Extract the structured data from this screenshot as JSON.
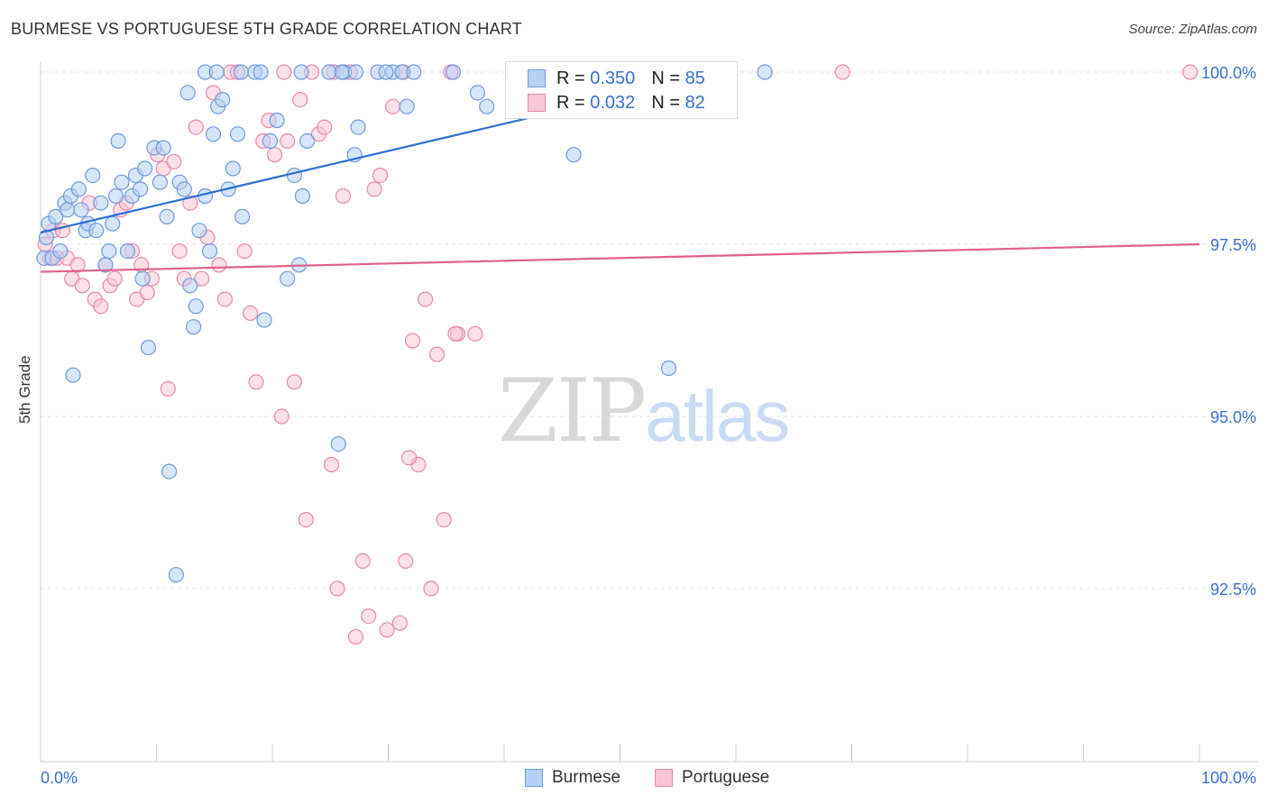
{
  "title": "BURMESE VS PORTUGUESE 5TH GRADE CORRELATION CHART",
  "source": "Source: ZipAtlas.com",
  "watermark": {
    "zip": "ZIP",
    "atlas": "atlas"
  },
  "colors": {
    "burmese_fill": "#b7d0f3",
    "burmese_stroke": "#6f9be0",
    "burmese_line": "#2f6fd0",
    "portuguese_fill": "#f8c6d6",
    "portuguese_stroke": "#e88aa8",
    "portuguese_line": "#e0608a",
    "tick_label": "#3b6fd4",
    "grid": "#e3e3e3"
  },
  "legend": {
    "burmese": {
      "r_label": "R =",
      "r_value": "0.350",
      "n_label": "N =",
      "n_value": "85"
    },
    "portuguese": {
      "r_label": "R =",
      "r_value": "0.032",
      "n_label": "N =",
      "n_value": "82"
    }
  },
  "chart_data": {
    "type": "scatter",
    "title": "BURMESE VS PORTUGUESE 5TH GRADE CORRELATION CHART",
    "xlabel": "",
    "ylabel": "5th Grade",
    "xlim": [
      0,
      100
    ],
    "ylim": [
      90.0,
      100.2
    ],
    "x_tick_labels": [
      "0.0%",
      "100.0%"
    ],
    "y_ticks": [
      92.5,
      95.0,
      97.5,
      100.0
    ],
    "y_tick_labels": [
      "92.5%",
      "95.0%",
      "97.5%",
      "100.0%"
    ],
    "grid": true,
    "legend_position": "bottom",
    "series": [
      {
        "name": "Burmese",
        "trend": {
          "x": [
            0,
            59
          ],
          "y": [
            97.67,
            100.0
          ]
        },
        "points": [
          [
            0.3,
            97.3
          ],
          [
            0.5,
            97.6
          ],
          [
            0.7,
            97.8
          ],
          [
            1.0,
            97.3
          ],
          [
            1.3,
            97.9
          ],
          [
            1.7,
            97.4
          ],
          [
            2.1,
            98.1
          ],
          [
            2.3,
            98.0
          ],
          [
            2.6,
            98.2
          ],
          [
            2.8,
            95.6
          ],
          [
            3.3,
            98.3
          ],
          [
            3.5,
            98.0
          ],
          [
            3.9,
            97.7
          ],
          [
            4.1,
            97.8
          ],
          [
            4.5,
            98.5
          ],
          [
            4.8,
            97.7
          ],
          [
            5.2,
            98.1
          ],
          [
            5.6,
            97.2
          ],
          [
            5.9,
            97.4
          ],
          [
            6.2,
            97.8
          ],
          [
            6.5,
            98.2
          ],
          [
            6.7,
            99.0
          ],
          [
            7.0,
            98.4
          ],
          [
            7.5,
            97.4
          ],
          [
            7.9,
            98.2
          ],
          [
            8.2,
            98.5
          ],
          [
            8.6,
            98.3
          ],
          [
            8.8,
            97.0
          ],
          [
            9.0,
            98.6
          ],
          [
            9.3,
            96.0
          ],
          [
            9.8,
            98.9
          ],
          [
            10.3,
            98.4
          ],
          [
            10.6,
            98.9
          ],
          [
            10.9,
            97.9
          ],
          [
            11.1,
            94.2
          ],
          [
            11.7,
            92.7
          ],
          [
            12.0,
            98.4
          ],
          [
            12.4,
            98.3
          ],
          [
            12.7,
            99.7
          ],
          [
            12.9,
            96.9
          ],
          [
            13.2,
            96.3
          ],
          [
            13.4,
            96.6
          ],
          [
            13.7,
            97.7
          ],
          [
            14.2,
            98.2
          ],
          [
            14.6,
            97.4
          ],
          [
            14.9,
            99.1
          ],
          [
            15.3,
            99.5
          ],
          [
            15.7,
            99.6
          ],
          [
            16.2,
            98.3
          ],
          [
            16.6,
            98.6
          ],
          [
            17.0,
            99.1
          ],
          [
            17.4,
            97.9
          ],
          [
            18.5,
            100.0
          ],
          [
            19.3,
            96.4
          ],
          [
            19.8,
            99.0
          ],
          [
            20.4,
            99.3
          ],
          [
            21.3,
            97.0
          ],
          [
            21.9,
            98.5
          ],
          [
            22.3,
            97.2
          ],
          [
            22.6,
            98.2
          ],
          [
            23.0,
            99.0
          ],
          [
            24.9,
            100.0
          ],
          [
            25.7,
            94.6
          ],
          [
            26.2,
            100.0
          ],
          [
            27.1,
            98.8
          ],
          [
            27.4,
            99.2
          ],
          [
            29.1,
            100.0
          ],
          [
            30.4,
            100.0
          ],
          [
            31.2,
            100.0
          ],
          [
            31.6,
            99.5
          ],
          [
            32.2,
            100.0
          ],
          [
            37.7,
            99.7
          ],
          [
            38.5,
            99.5
          ],
          [
            46.0,
            98.8
          ],
          [
            54.2,
            95.7
          ],
          [
            62.5,
            100.0
          ],
          [
            14.2,
            100.0
          ],
          [
            15.2,
            100.0
          ],
          [
            17.3,
            100.0
          ],
          [
            22.5,
            100.0
          ],
          [
            26.0,
            100.0
          ],
          [
            29.8,
            100.0
          ],
          [
            19.0,
            100.0
          ],
          [
            35.6,
            100.0
          ],
          [
            27.2,
            100.0
          ]
        ]
      },
      {
        "name": "Portuguese",
        "trend": {
          "x": [
            0,
            100
          ],
          "y": [
            97.1,
            97.5
          ]
        },
        "points": [
          [
            0.4,
            97.5
          ],
          [
            0.8,
            97.3
          ],
          [
            1.1,
            97.7
          ],
          [
            1.4,
            97.3
          ],
          [
            1.9,
            97.7
          ],
          [
            2.3,
            97.3
          ],
          [
            2.7,
            97.0
          ],
          [
            3.2,
            97.2
          ],
          [
            3.6,
            96.9
          ],
          [
            4.2,
            98.1
          ],
          [
            4.7,
            96.7
          ],
          [
            5.2,
            96.6
          ],
          [
            5.6,
            97.2
          ],
          [
            6.0,
            96.9
          ],
          [
            6.4,
            97.0
          ],
          [
            6.9,
            98.0
          ],
          [
            7.4,
            98.1
          ],
          [
            7.9,
            97.4
          ],
          [
            8.3,
            96.7
          ],
          [
            8.7,
            97.2
          ],
          [
            9.2,
            96.8
          ],
          [
            9.6,
            97.0
          ],
          [
            10.1,
            98.8
          ],
          [
            10.6,
            98.6
          ],
          [
            11.0,
            95.4
          ],
          [
            11.5,
            98.7
          ],
          [
            12.0,
            97.4
          ],
          [
            12.4,
            97.0
          ],
          [
            12.9,
            98.1
          ],
          [
            13.4,
            99.2
          ],
          [
            13.9,
            97.0
          ],
          [
            14.4,
            97.6
          ],
          [
            14.9,
            99.7
          ],
          [
            15.4,
            97.2
          ],
          [
            15.9,
            96.7
          ],
          [
            16.4,
            100.0
          ],
          [
            17.0,
            100.0
          ],
          [
            17.6,
            97.4
          ],
          [
            18.1,
            96.5
          ],
          [
            18.6,
            95.5
          ],
          [
            19.2,
            99.0
          ],
          [
            19.7,
            99.3
          ],
          [
            20.2,
            98.8
          ],
          [
            20.8,
            95.0
          ],
          [
            21.3,
            99.0
          ],
          [
            21.9,
            95.5
          ],
          [
            22.4,
            99.6
          ],
          [
            22.9,
            93.5
          ],
          [
            23.4,
            100.0
          ],
          [
            24.0,
            99.1
          ],
          [
            24.5,
            99.2
          ],
          [
            25.1,
            94.3
          ],
          [
            25.6,
            92.5
          ],
          [
            26.1,
            98.2
          ],
          [
            26.7,
            100.0
          ],
          [
            27.2,
            91.8
          ],
          [
            27.8,
            92.9
          ],
          [
            28.3,
            92.1
          ],
          [
            28.8,
            98.3
          ],
          [
            29.3,
            98.5
          ],
          [
            29.9,
            91.9
          ],
          [
            30.4,
            99.5
          ],
          [
            31.0,
            92.0
          ],
          [
            31.5,
            92.9
          ],
          [
            32.1,
            96.1
          ],
          [
            32.6,
            94.3
          ],
          [
            33.2,
            96.7
          ],
          [
            33.7,
            92.5
          ],
          [
            34.2,
            95.9
          ],
          [
            34.8,
            93.5
          ],
          [
            35.4,
            100.0
          ],
          [
            36.0,
            96.2
          ],
          [
            37.5,
            96.2
          ],
          [
            50.5,
            100.0
          ],
          [
            48.5,
            100.0
          ],
          [
            69.2,
            100.0
          ],
          [
            99.2,
            100.0
          ],
          [
            25.3,
            100.0
          ],
          [
            31.3,
            100.0
          ],
          [
            21.0,
            100.0
          ],
          [
            35.8,
            96.2
          ],
          [
            31.8,
            94.4
          ]
        ]
      }
    ]
  }
}
